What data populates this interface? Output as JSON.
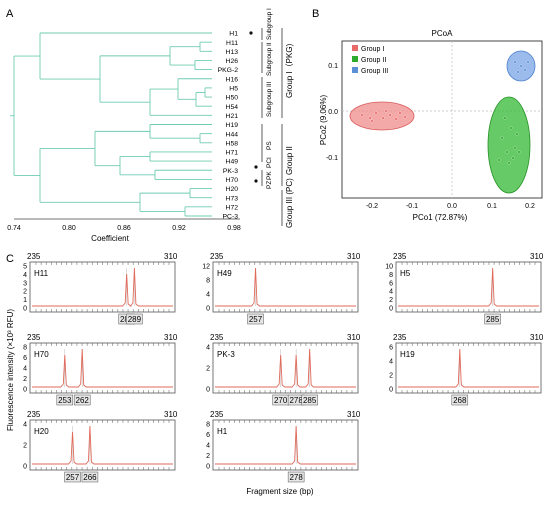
{
  "panel_a": {
    "label": "A",
    "leaves": [
      "H1",
      "H11",
      "H13",
      "H26",
      "PKG-2",
      "H16",
      "H5",
      "H50",
      "H54",
      "H21",
      "H19",
      "H44",
      "H58",
      "H71",
      "H49",
      "PK-3",
      "H70",
      "H20",
      "H73",
      "H72",
      "PC-3"
    ],
    "axis_ticks": [
      "0.74",
      "0.80",
      "0.86",
      "0.92",
      "0.98"
    ],
    "axis_title": "Coefficient",
    "subgroup_labels": [
      "Subgroup I",
      "Subgroup II",
      "Subgroup III"
    ],
    "group_labels": [
      "Group I（PKG)",
      "Group II",
      "Group III (PC)"
    ],
    "small_labels": [
      "PS",
      "PCI",
      "PK",
      "PZ"
    ],
    "tree_color": "#6fcbb2"
  },
  "panel_b": {
    "label": "B",
    "title": "PCoA",
    "xlabel": "PCo1 (72.87%)",
    "ylabel": "PCo2 (9.06%)",
    "x_ticks": [
      "-0.2",
      "-0.1",
      "0.0",
      "0.1",
      "0.2"
    ],
    "y_ticks": [
      "0.1",
      "0.0",
      "-0.1"
    ],
    "legend": [
      "Group I",
      "Group II",
      "Group III"
    ],
    "colors": {
      "group1": "#e86a6a",
      "group2": "#2eaa2e",
      "group3": "#5b8fd6"
    }
  },
  "panel_c": {
    "label": "C",
    "ylabel": "Fluorescence intensity (×10³ RFU)",
    "xlabel": "Fragment size (bp)",
    "range_start": "235",
    "range_end": "310",
    "peak_color": "#e06a5a",
    "traces": [
      {
        "name": "H11",
        "y_ticks": [
          "5",
          "4",
          "3",
          "2",
          "1",
          "0"
        ],
        "peaks": [
          "285",
          "289"
        ]
      },
      {
        "name": "H49",
        "y_ticks": [
          "12",
          "8",
          "4",
          "0"
        ],
        "peaks": [
          "257"
        ]
      },
      {
        "name": "H5",
        "y_ticks": [
          "10",
          "8",
          "6",
          "4",
          "2",
          "0"
        ],
        "peaks": [
          "285"
        ]
      },
      {
        "name": "H70",
        "y_ticks": [
          "8",
          "6",
          "4",
          "2",
          "0"
        ],
        "peaks": [
          "253",
          "262"
        ]
      },
      {
        "name": "PK-3",
        "y_ticks": [
          "4",
          "2",
          "0"
        ],
        "peaks": [
          "270",
          "278",
          "285"
        ]
      },
      {
        "name": "H19",
        "y_ticks": [
          "6",
          "4",
          "2",
          "0"
        ],
        "peaks": [
          "268"
        ]
      },
      {
        "name": "H20",
        "y_ticks": [
          "4",
          "2",
          "0"
        ],
        "peaks": [
          "257",
          "266"
        ]
      },
      {
        "name": "H1",
        "y_ticks": [
          "8",
          "6",
          "4",
          "2",
          "0"
        ],
        "peaks": [
          "278"
        ]
      }
    ]
  }
}
